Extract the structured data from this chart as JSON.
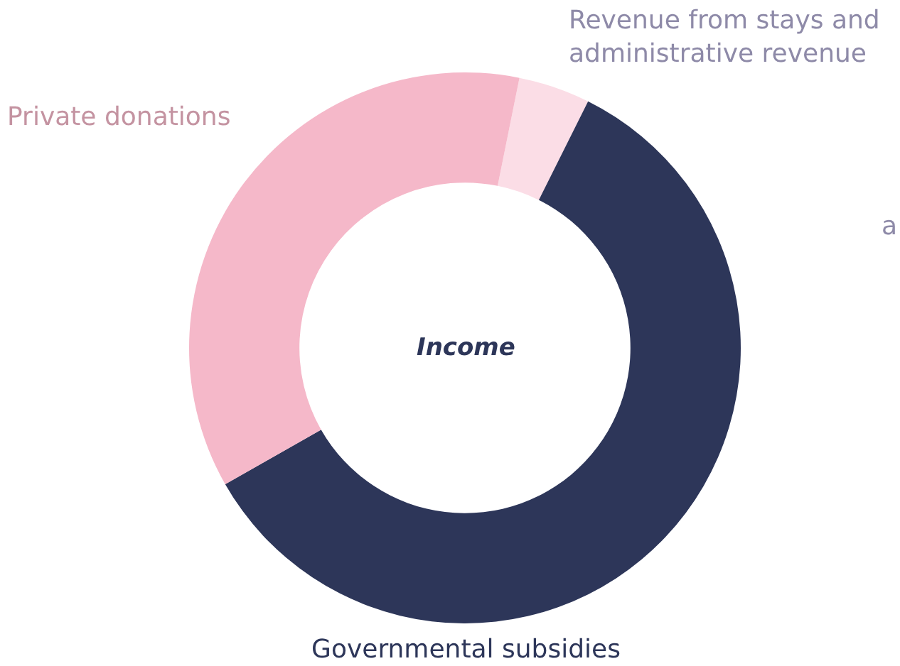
{
  "chart_data": {
    "type": "donut",
    "title": "Income",
    "categories": [
      "Revenue from stays and administrative revenue",
      "Governmental subsidies",
      "Private donations"
    ],
    "values": [
      4.2,
      59.4,
      36.4
    ],
    "colors": [
      "#fbdde6",
      "#2d3659",
      "#f5b8c9"
    ],
    "annotations": [
      "a"
    ]
  }
}
